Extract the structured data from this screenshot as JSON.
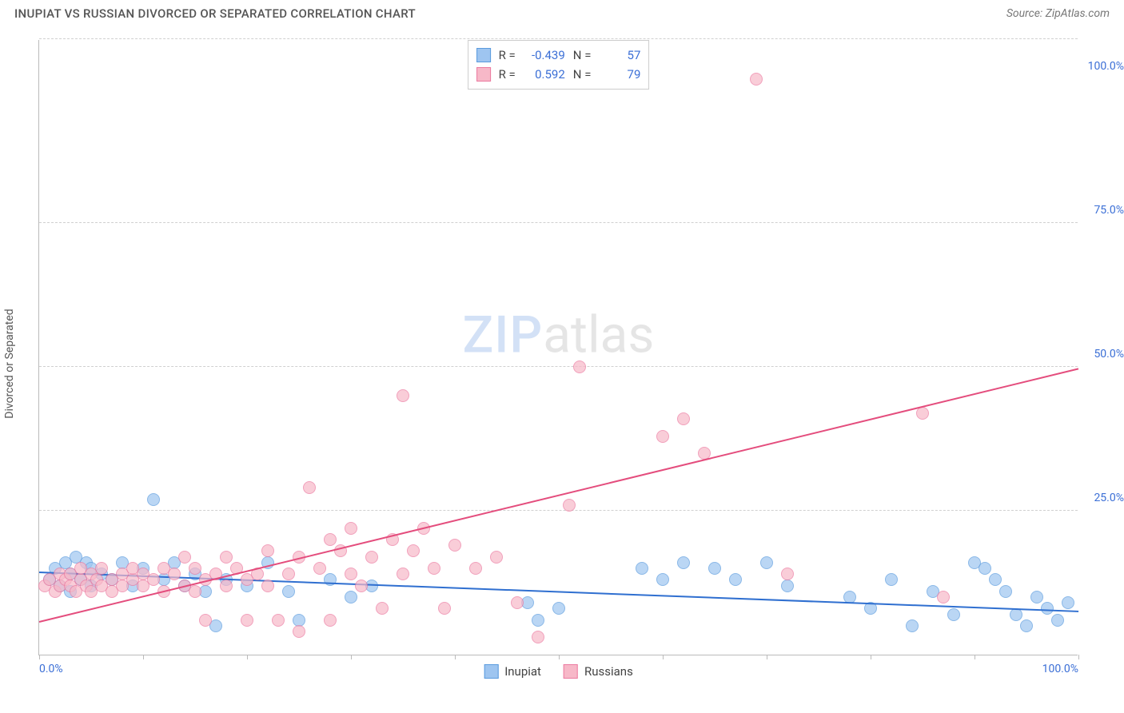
{
  "title": "INUPIAT VS RUSSIAN DIVORCED OR SEPARATED CORRELATION CHART",
  "source": "Source: ZipAtlas.com",
  "y_axis_label": "Divorced or Separated",
  "watermark": {
    "part1": "ZIP",
    "part2": "atlas"
  },
  "chart": {
    "type": "scatter",
    "background_color": "#ffffff",
    "grid_color": "#d0d0d0",
    "axis_color": "#bbbbbb",
    "tick_label_color": "#3b6fd6",
    "tick_fontsize": 14,
    "xlim": [
      0,
      100
    ],
    "ylim": [
      0,
      107
    ],
    "x_ticks": [
      0,
      10,
      20,
      30,
      40,
      50,
      60,
      70,
      80,
      90,
      100
    ],
    "x_tick_labels_shown": {
      "0": "0.0%",
      "100": "100.0%"
    },
    "y_gridlines": [
      25,
      50,
      75,
      107
    ],
    "y_tick_labels": {
      "25": "25.0%",
      "50": "50.0%",
      "75": "75.0%",
      "100": "100.0%"
    },
    "marker_radius": 8,
    "marker_fill_opacity": 0.35,
    "marker_stroke_width": 1.2,
    "trend_line_width": 2
  },
  "series": [
    {
      "name": "Inupiat",
      "color_fill": "#9ec5f0",
      "color_stroke": "#5a9bde",
      "trend_color": "#2f6fd0",
      "R": "-0.439",
      "N": "57",
      "trend": {
        "x1": 0,
        "y1": 14.2,
        "x2": 100,
        "y2": 7.4
      },
      "points": [
        [
          1,
          13
        ],
        [
          1.5,
          15
        ],
        [
          2,
          12
        ],
        [
          2.5,
          16
        ],
        [
          3,
          14
        ],
        [
          3,
          11
        ],
        [
          3.5,
          17
        ],
        [
          4,
          13
        ],
        [
          4.5,
          16
        ],
        [
          5,
          12
        ],
        [
          5,
          15
        ],
        [
          6,
          14
        ],
        [
          7,
          13
        ],
        [
          8,
          16
        ],
        [
          9,
          12
        ],
        [
          10,
          15
        ],
        [
          11,
          27
        ],
        [
          12,
          13
        ],
        [
          13,
          16
        ],
        [
          14,
          12
        ],
        [
          15,
          14
        ],
        [
          16,
          11
        ],
        [
          17,
          5
        ],
        [
          18,
          13
        ],
        [
          20,
          12
        ],
        [
          22,
          16
        ],
        [
          24,
          11
        ],
        [
          25,
          6
        ],
        [
          28,
          13
        ],
        [
          30,
          10
        ],
        [
          32,
          12
        ],
        [
          47,
          9
        ],
        [
          50,
          8
        ],
        [
          48,
          6
        ],
        [
          58,
          15
        ],
        [
          60,
          13
        ],
        [
          62,
          16
        ],
        [
          65,
          15
        ],
        [
          67,
          13
        ],
        [
          70,
          16
        ],
        [
          72,
          12
        ],
        [
          78,
          10
        ],
        [
          80,
          8
        ],
        [
          82,
          13
        ],
        [
          84,
          5
        ],
        [
          86,
          11
        ],
        [
          88,
          7
        ],
        [
          90,
          16
        ],
        [
          91,
          15
        ],
        [
          92,
          13
        ],
        [
          93,
          11
        ],
        [
          94,
          7
        ],
        [
          95,
          5
        ],
        [
          96,
          10
        ],
        [
          97,
          8
        ],
        [
          98,
          6
        ],
        [
          99,
          9
        ]
      ]
    },
    {
      "name": "Russians",
      "color_fill": "#f7b8c8",
      "color_stroke": "#ec7aa0",
      "trend_color": "#e44d7d",
      "R": "0.592",
      "N": "79",
      "trend": {
        "x1": 0,
        "y1": 5.5,
        "x2": 100,
        "y2": 49.5
      },
      "points": [
        [
          0.5,
          12
        ],
        [
          1,
          13
        ],
        [
          1.5,
          11
        ],
        [
          2,
          14
        ],
        [
          2,
          12
        ],
        [
          2.5,
          13
        ],
        [
          3,
          12
        ],
        [
          3,
          14
        ],
        [
          3.5,
          11
        ],
        [
          4,
          13
        ],
        [
          4,
          15
        ],
        [
          4.5,
          12
        ],
        [
          5,
          14
        ],
        [
          5,
          11
        ],
        [
          5.5,
          13
        ],
        [
          6,
          12
        ],
        [
          6,
          15
        ],
        [
          7,
          13
        ],
        [
          7,
          11
        ],
        [
          8,
          14
        ],
        [
          8,
          12
        ],
        [
          9,
          13
        ],
        [
          9,
          15
        ],
        [
          10,
          12
        ],
        [
          10,
          14
        ],
        [
          11,
          13
        ],
        [
          12,
          15
        ],
        [
          12,
          11
        ],
        [
          13,
          14
        ],
        [
          14,
          12
        ],
        [
          14,
          17
        ],
        [
          15,
          15
        ],
        [
          15,
          11
        ],
        [
          16,
          13
        ],
        [
          16,
          6
        ],
        [
          17,
          14
        ],
        [
          18,
          12
        ],
        [
          18,
          17
        ],
        [
          19,
          15
        ],
        [
          20,
          13
        ],
        [
          20,
          6
        ],
        [
          21,
          14
        ],
        [
          22,
          18
        ],
        [
          22,
          12
        ],
        [
          23,
          6
        ],
        [
          24,
          14
        ],
        [
          25,
          17
        ],
        [
          25,
          4
        ],
        [
          26,
          29
        ],
        [
          27,
          15
        ],
        [
          28,
          20
        ],
        [
          28,
          6
        ],
        [
          29,
          18
        ],
        [
          30,
          14
        ],
        [
          30,
          22
        ],
        [
          31,
          12
        ],
        [
          32,
          17
        ],
        [
          33,
          8
        ],
        [
          34,
          20
        ],
        [
          35,
          14
        ],
        [
          35,
          45
        ],
        [
          36,
          18
        ],
        [
          37,
          22
        ],
        [
          38,
          15
        ],
        [
          39,
          8
        ],
        [
          40,
          19
        ],
        [
          42,
          15
        ],
        [
          44,
          17
        ],
        [
          46,
          9
        ],
        [
          48,
          3
        ],
        [
          51,
          26
        ],
        [
          52,
          50
        ],
        [
          60,
          38
        ],
        [
          62,
          41
        ],
        [
          64,
          35
        ],
        [
          69,
          100
        ],
        [
          72,
          14
        ],
        [
          85,
          42
        ],
        [
          87,
          10
        ]
      ]
    }
  ],
  "legend": {
    "items": [
      {
        "label": "Inupiat",
        "swatch_fill": "#9ec5f0",
        "swatch_stroke": "#5a9bde"
      },
      {
        "label": "Russians",
        "swatch_fill": "#f7b8c8",
        "swatch_stroke": "#ec7aa0"
      }
    ]
  },
  "stats_box": {
    "r_label": "R =",
    "n_label": "N ="
  }
}
